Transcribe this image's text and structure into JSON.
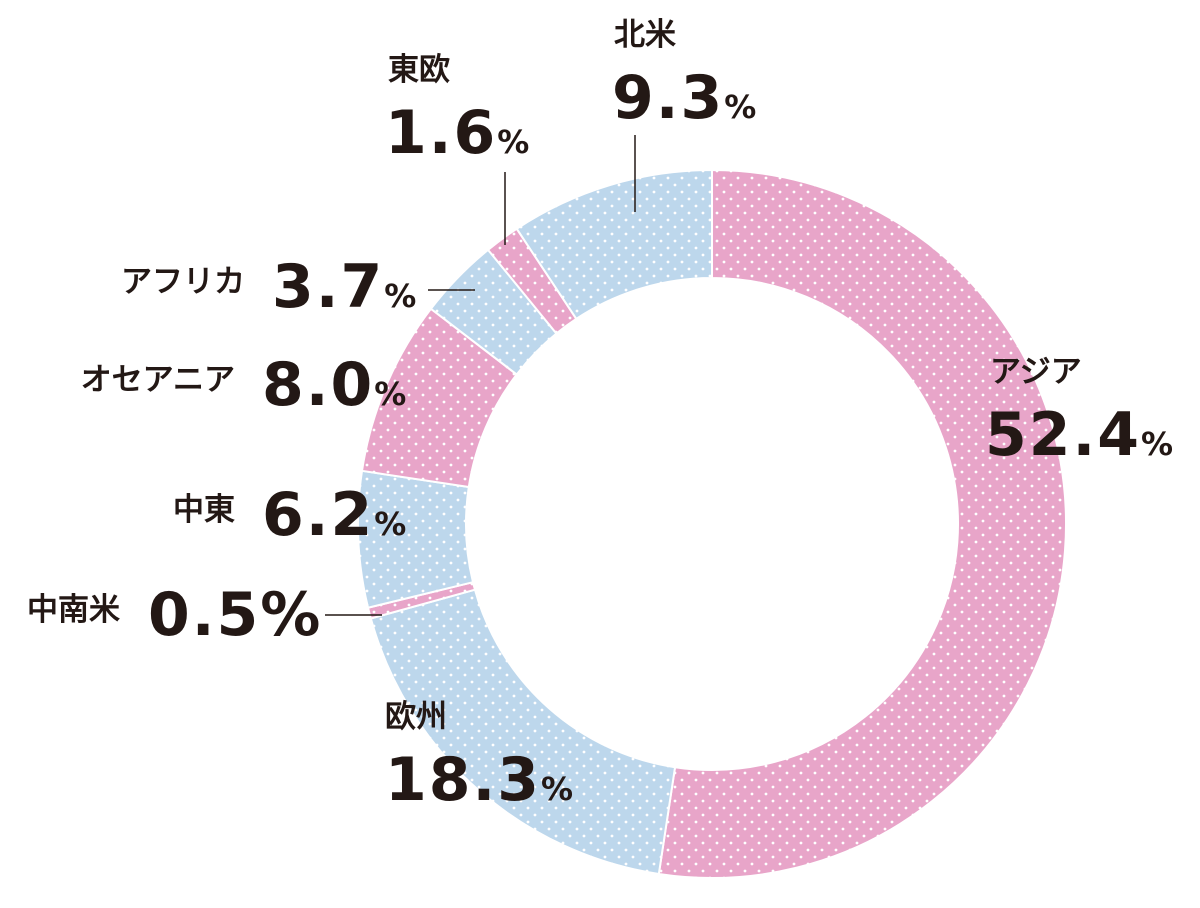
{
  "chart_data": {
    "type": "donut",
    "categories": [
      "アジア",
      "欧州",
      "中南米",
      "中東",
      "オセアニア",
      "アフリカ",
      "東欧",
      "北米"
    ],
    "values": [
      52.4,
      18.3,
      0.5,
      6.2,
      8.0,
      3.7,
      1.6,
      9.3
    ],
    "value_labels": [
      "52.4%",
      "18.3%",
      "0.5%",
      "6.2%",
      "8.0%",
      "3.7%",
      "1.6%",
      "9.3%"
    ],
    "colors": [
      "#e8a5c9",
      "#bdd7ec",
      "#e8a5c9",
      "#bdd7ec",
      "#e8a5c9",
      "#bdd7ec",
      "#e8a5c9",
      "#bdd7ec"
    ]
  }
}
